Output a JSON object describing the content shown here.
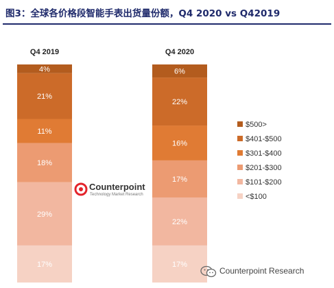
{
  "title": "图3：全球各价格段智能手表出货量份额，Q4 2020 vs Q42019",
  "logo": {
    "name": "Counterpoint",
    "tagline": "Technology Market Research"
  },
  "watermark": {
    "text": "Counterpoint Research"
  },
  "colors": {
    "$500>": "#b35c1e",
    "$401-$500": "#cc6b29",
    "$301-$400": "#e07b34",
    "$201-$300": "#ec9b72",
    "$101-$200": "#f2b7a0",
    "<$100": "#f6d2c4",
    "title": "#1f2a6b"
  },
  "chart_data": {
    "type": "bar",
    "stacked": true,
    "percent": true,
    "categories": [
      "Q4 2019",
      "Q4 2020"
    ],
    "series": [
      {
        "name": "<$100",
        "values": [
          17,
          17
        ]
      },
      {
        "name": "$101-$200",
        "values": [
          29,
          22
        ]
      },
      {
        "name": "$201-$300",
        "values": [
          18,
          17
        ]
      },
      {
        "name": "$301-$400",
        "values": [
          11,
          16
        ]
      },
      {
        "name": "$401-$500",
        "values": [
          21,
          22
        ]
      },
      {
        "name": "$500>",
        "values": [
          4,
          6
        ]
      }
    ],
    "data_labels": [
      [
        "17%",
        "29%",
        "18%",
        "11%",
        "21%",
        "4%"
      ],
      [
        "17%",
        "22%",
        "17%",
        "16%",
        "22%",
        "6%"
      ]
    ],
    "ylim": [
      0,
      100
    ],
    "legend_position": "right",
    "legend_order": [
      "$500>",
      "$401-$500",
      "$301-$400",
      "$201-$300",
      "$101-$200",
      "<$100"
    ]
  }
}
